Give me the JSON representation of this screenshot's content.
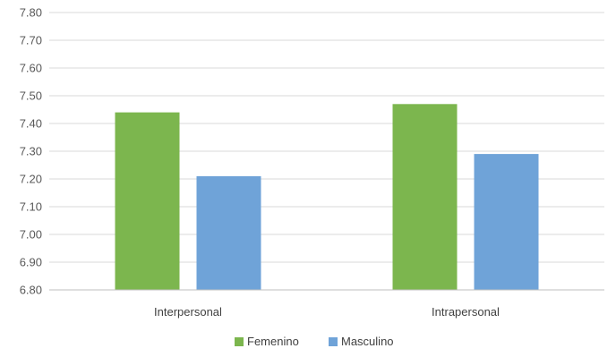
{
  "chart_data": {
    "type": "bar",
    "title": "",
    "xlabel": "",
    "ylabel": "",
    "categories": [
      "Interpersonal",
      "Intrapersonal"
    ],
    "series": [
      {
        "name": "Femenino",
        "color": "#7cb64e",
        "values": [
          7.44,
          7.47
        ]
      },
      {
        "name": "Masculino",
        "color": "#6fa3d8",
        "values": [
          7.21,
          7.29
        ]
      }
    ],
    "ylim": [
      6.8,
      7.8
    ],
    "yticks": [
      "6.80",
      "6.90",
      "7.00",
      "7.10",
      "7.20",
      "7.30",
      "7.40",
      "7.50",
      "7.60",
      "7.70",
      "7.80"
    ],
    "grid": true,
    "legend_position": "bottom",
    "gridline_color": "#d9d9d9",
    "axis_color": "#bfbfbf"
  }
}
